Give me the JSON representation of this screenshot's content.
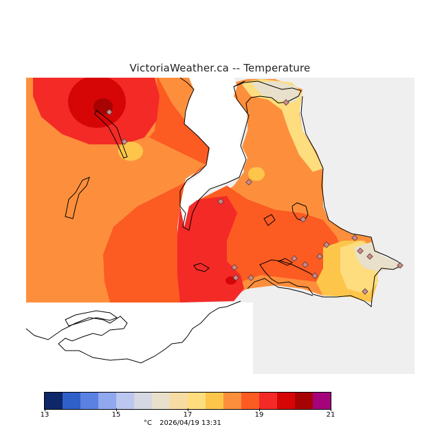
{
  "title": "VictoriaWeather.ca -- Temperature",
  "legend": {
    "colors": [
      "#0d2769",
      "#2f5fc9",
      "#5b82e3",
      "#8fa8ee",
      "#bcc7f0",
      "#d5d7e3",
      "#e8e0ca",
      "#f6dca2",
      "#fddd7e",
      "#fdc64b",
      "#fd8f3c",
      "#fc5b22",
      "#f42a27",
      "#d60606",
      "#a80303",
      "#a4037c"
    ],
    "ticks": [
      {
        "label": "13",
        "value": 13
      },
      {
        "label": "15",
        "value": 15
      },
      {
        "label": "17",
        "value": 17
      },
      {
        "label": "19",
        "value": 19
      },
      {
        "label": "21",
        "value": 21
      }
    ],
    "min": 13,
    "max": 21
  },
  "footer": {
    "unit": "°C",
    "timestamp": "2026/04/19 13:31"
  },
  "colors": {
    "background_gray": "#efefef",
    "water": "#ffffff"
  }
}
